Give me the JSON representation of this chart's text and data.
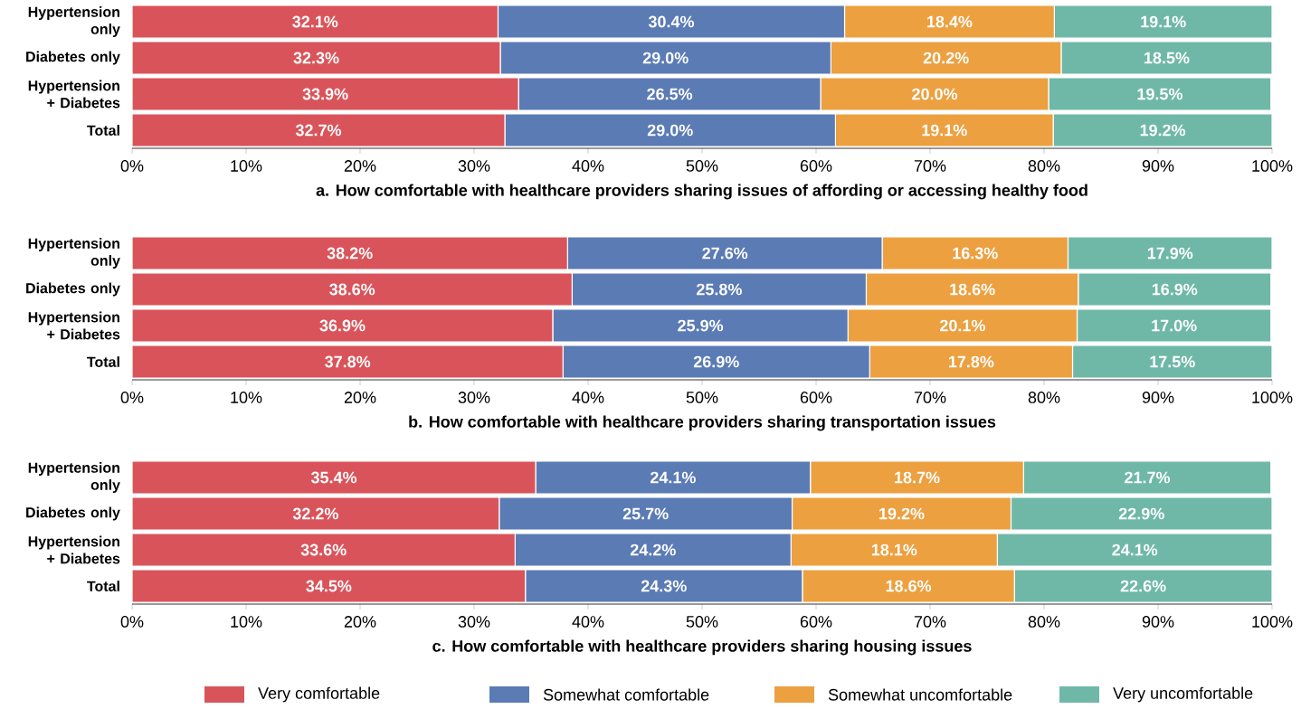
{
  "chart_data": [
    {
      "type": "bar",
      "orientation": "horizontal",
      "stacked": true,
      "xlabel": "a. How comfortable with healthcare providers sharing issues of affording or accessing healthy food",
      "categories": [
        "Hypertension only",
        "Diabetes only",
        "Hypertension + Diabetes",
        "Total"
      ],
      "xlim": [
        0,
        100
      ],
      "xticks": [
        {
          "value": 0,
          "label": "0%"
        },
        {
          "value": 10,
          "label": "10%"
        },
        {
          "value": 20,
          "label": "20%"
        },
        {
          "value": 30,
          "label": "30%"
        },
        {
          "value": 40,
          "label": "40%"
        },
        {
          "value": 50,
          "label": "50%"
        },
        {
          "value": 60,
          "label": "60%"
        },
        {
          "value": 70,
          "label": "70%"
        },
        {
          "value": 80,
          "label": "80%"
        },
        {
          "value": 90,
          "label": "90%"
        },
        {
          "value": 100,
          "label": "100%"
        }
      ],
      "series": [
        {
          "color": "#d9545a",
          "values": [
            32.1,
            32.3,
            33.9,
            32.7
          ],
          "value_labels": [
            "32.1%",
            "32.3%",
            "33.9%",
            "32.7%"
          ]
        },
        {
          "color": "#5b7bb5",
          "values": [
            30.4,
            29.0,
            26.5,
            29.0
          ],
          "value_labels": [
            "30.4%",
            "29.0%",
            "26.5%",
            "29.0%"
          ]
        },
        {
          "color": "#eca040",
          "values": [
            18.4,
            20.2,
            20.0,
            19.1
          ],
          "value_labels": [
            "18.4%",
            "20.2%",
            "20.0%",
            "19.1%"
          ]
        },
        {
          "color": "#6fb8a8",
          "values": [
            19.1,
            18.5,
            19.5,
            19.2
          ],
          "value_labels": [
            "19.1%",
            "18.5%",
            "19.5%",
            "19.2%"
          ]
        }
      ]
    },
    {
      "type": "bar",
      "orientation": "horizontal",
      "stacked": true,
      "xlabel": "b. How comfortable with healthcare providers sharing transportation issues",
      "categories": [
        "Hypertension only",
        "Diabetes only",
        "Hypertension + Diabetes",
        "Total"
      ],
      "xlim": [
        0,
        100
      ],
      "xticks": [
        {
          "value": 0,
          "label": "0%"
        },
        {
          "value": 10,
          "label": "10%"
        },
        {
          "value": 20,
          "label": "20%"
        },
        {
          "value": 30,
          "label": "30%"
        },
        {
          "value": 40,
          "label": "40%"
        },
        {
          "value": 50,
          "label": "50%"
        },
        {
          "value": 60,
          "label": "60%"
        },
        {
          "value": 70,
          "label": "70%"
        },
        {
          "value": 80,
          "label": "80%"
        },
        {
          "value": 90,
          "label": "90%"
        },
        {
          "value": 100,
          "label": "100%"
        }
      ],
      "series": [
        {
          "color": "#d9545a",
          "values": [
            38.2,
            38.6,
            36.9,
            37.8
          ],
          "value_labels": [
            "38.2%",
            "38.6%",
            "36.9%",
            "37.8%"
          ]
        },
        {
          "color": "#5b7bb5",
          "values": [
            27.6,
            25.8,
            25.9,
            26.9
          ],
          "value_labels": [
            "27.6%",
            "25.8%",
            "25.9%",
            "26.9%"
          ]
        },
        {
          "color": "#eca040",
          "values": [
            16.3,
            18.6,
            20.1,
            17.8
          ],
          "value_labels": [
            "16.3%",
            "18.6%",
            "20.1%",
            "17.8%"
          ]
        },
        {
          "color": "#6fb8a8",
          "values": [
            17.9,
            16.9,
            17.0,
            17.5
          ],
          "value_labels": [
            "17.9%",
            "16.9%",
            "17.0%",
            "17.5%"
          ]
        }
      ]
    },
    {
      "type": "bar",
      "orientation": "horizontal",
      "stacked": true,
      "xlabel": "c. How comfortable with healthcare providers sharing housing issues",
      "categories": [
        "Hypertension only",
        "Diabetes only",
        "Hypertension + Diabetes",
        "Total"
      ],
      "xlim": [
        0,
        100
      ],
      "xticks": [
        {
          "value": 0,
          "label": "0%"
        },
        {
          "value": 10,
          "label": "10%"
        },
        {
          "value": 20,
          "label": "20%"
        },
        {
          "value": 30,
          "label": "30%"
        },
        {
          "value": 40,
          "label": "40%"
        },
        {
          "value": 50,
          "label": "50%"
        },
        {
          "value": 60,
          "label": "60%"
        },
        {
          "value": 70,
          "label": "70%"
        },
        {
          "value": 80,
          "label": "80%"
        },
        {
          "value": 90,
          "label": "90%"
        },
        {
          "value": 100,
          "label": "100%"
        }
      ],
      "legend": "bottom",
      "series": [
        {
          "name": "Very comfortable",
          "color": "#d9545a",
          "values": [
            35.4,
            32.2,
            33.6,
            34.5
          ],
          "value_labels": [
            "35.4%",
            "32.2%",
            "33.6%",
            "34.5%"
          ]
        },
        {
          "name": "Somewhat comfortable",
          "color": "#5b7bb5",
          "values": [
            24.1,
            25.7,
            24.2,
            24.3
          ],
          "value_labels": [
            "24.1%",
            "25.7%",
            "24.2%",
            "24.3%"
          ]
        },
        {
          "name": "Somewhat uncomfortable",
          "color": "#eca040",
          "values": [
            18.7,
            19.2,
            18.1,
            18.6
          ],
          "value_labels": [
            "18.7%",
            "19.2%",
            "18.1%",
            "18.6%"
          ]
        },
        {
          "name": "Very uncomfortable",
          "color": "#6fb8a8",
          "values": [
            21.7,
            22.9,
            24.1,
            22.6
          ],
          "value_labels": [
            "21.7%",
            "22.9%",
            "24.1%",
            "22.6%"
          ]
        }
      ]
    }
  ]
}
